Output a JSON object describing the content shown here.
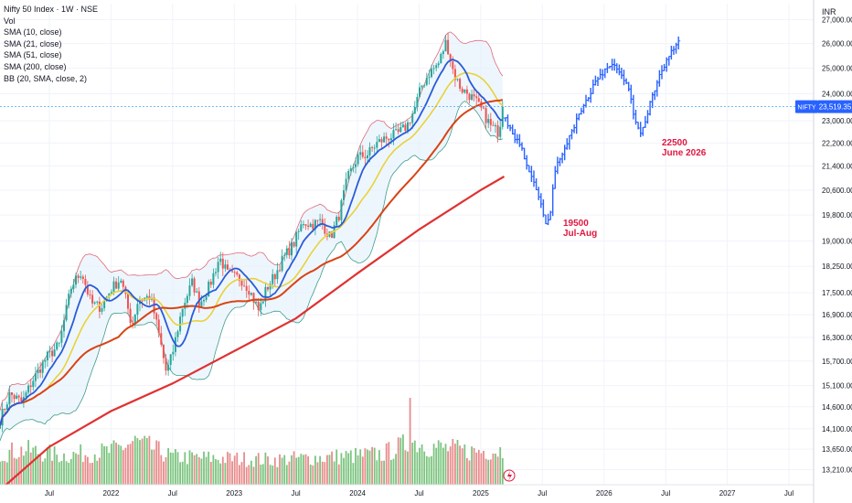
{
  "legend": {
    "title": "Nifty 50 Index · 1W · NSE",
    "vol": "Vol",
    "sma10": "SMA (10, close)",
    "sma21": "SMA (21, close)",
    "sma51": "SMA (51, close)",
    "sma200": "SMA (200, close)",
    "bb": "BB (20, SMA, close, 2)"
  },
  "axis": {
    "currency": "INR",
    "symbol_badge": "NIFTY",
    "last_price_label": "23,519.35",
    "last_price": 23519.35
  },
  "annotations": [
    {
      "lines": [
        "19500",
        "Jul-Aug"
      ],
      "color": "#e0173f"
    },
    {
      "lines": [
        "22500",
        "June 2026"
      ],
      "color": "#e0173f"
    }
  ],
  "chart_data": {
    "type": "line",
    "title": "Nifty 50 Index · 1W · NSE",
    "y_scale": "log",
    "ylim": [
      12900,
      27700
    ],
    "y_ticks": [
      13210,
      13650,
      14100,
      14600,
      15100,
      15700,
      16300,
      16900,
      17500,
      18250,
      19000,
      19800,
      20600,
      21400,
      22200,
      23000,
      24000,
      25000,
      26000,
      27000
    ],
    "y_tick_labels": [
      "13,210.00",
      "13,650.00",
      "14,100.00",
      "14,600.00",
      "15,100.00",
      "15,700.00",
      "16,300.00",
      "16,900.00",
      "17,500.00",
      "18,250.00",
      "19,000.00",
      "19,800.00",
      "20,600.00",
      "21,400.00",
      "22,200.00",
      "23,000.00",
      "24,000.00",
      "25,000.00",
      "26,000.00",
      "27,000.00"
    ],
    "x_ticks": [
      {
        "label": "Jul",
        "t": 2021.5
      },
      {
        "label": "2022",
        "t": 2022.0
      },
      {
        "label": "Jul",
        "t": 2022.5
      },
      {
        "label": "2023",
        "t": 2023.0
      },
      {
        "label": "Jul",
        "t": 2023.5
      },
      {
        "label": "2024",
        "t": 2024.0
      },
      {
        "label": "Jul",
        "t": 2024.5
      },
      {
        "label": "2025",
        "t": 2025.0
      },
      {
        "label": "Jul",
        "t": 2025.5
      },
      {
        "label": "2026",
        "t": 2026.0
      },
      {
        "label": "Jul",
        "t": 2026.5
      },
      {
        "label": "2027",
        "t": 2027.0
      },
      {
        "label": "Jul",
        "t": 2027.5
      }
    ],
    "xlim": [
      2021.1,
      2027.7
    ],
    "price_keypoints": [
      [
        2021.1,
        14300
      ],
      [
        2021.18,
        14900
      ],
      [
        2021.28,
        14700
      ],
      [
        2021.36,
        15200
      ],
      [
        2021.48,
        15800
      ],
      [
        2021.58,
        16100
      ],
      [
        2021.68,
        17700
      ],
      [
        2021.76,
        18100
      ],
      [
        2021.84,
        17200
      ],
      [
        2021.92,
        17100
      ],
      [
        2022.0,
        17600
      ],
      [
        2022.08,
        17900
      ],
      [
        2022.17,
        16600
      ],
      [
        2022.22,
        17300
      ],
      [
        2022.32,
        17400
      ],
      [
        2022.4,
        16200
      ],
      [
        2022.45,
        15400
      ],
      [
        2022.5,
        15900
      ],
      [
        2022.58,
        17100
      ],
      [
        2022.66,
        17800
      ],
      [
        2022.72,
        17200
      ],
      [
        2022.8,
        17700
      ],
      [
        2022.88,
        18500
      ],
      [
        2022.95,
        18000
      ],
      [
        2023.05,
        17900
      ],
      [
        2023.12,
        17600
      ],
      [
        2023.2,
        17000
      ],
      [
        2023.26,
        17600
      ],
      [
        2023.33,
        18000
      ],
      [
        2023.4,
        18500
      ],
      [
        2023.48,
        18900
      ],
      [
        2023.56,
        19600
      ],
      [
        2023.62,
        19500
      ],
      [
        2023.7,
        19600
      ],
      [
        2023.78,
        19100
      ],
      [
        2023.85,
        19800
      ],
      [
        2023.92,
        21000
      ],
      [
        2024.0,
        21700
      ],
      [
        2024.08,
        21800
      ],
      [
        2024.16,
        22200
      ],
      [
        2024.24,
        22400
      ],
      [
        2024.32,
        22500
      ],
      [
        2024.4,
        22800
      ],
      [
        2024.46,
        23400
      ],
      [
        2024.52,
        24300
      ],
      [
        2024.58,
        24800
      ],
      [
        2024.66,
        25200
      ],
      [
        2024.72,
        26100
      ],
      [
        2024.78,
        24800
      ],
      [
        2024.84,
        24200
      ],
      [
        2024.9,
        24000
      ],
      [
        2024.96,
        23700
      ],
      [
        2025.02,
        23300
      ],
      [
        2025.08,
        22800
      ],
      [
        2025.14,
        22600
      ],
      [
        2025.19,
        23519.35
      ]
    ],
    "volume_keypoints": [
      [
        2021.1,
        0.45
      ],
      [
        2021.3,
        0.5
      ],
      [
        2021.6,
        0.42
      ],
      [
        2022.0,
        0.48
      ],
      [
        2022.2,
        0.62
      ],
      [
        2022.5,
        0.4
      ],
      [
        2022.9,
        0.38
      ],
      [
        2023.3,
        0.36
      ],
      [
        2023.8,
        0.4
      ],
      [
        2024.2,
        0.44
      ],
      [
        2024.45,
        0.62
      ],
      [
        2024.6,
        0.55
      ],
      [
        2024.9,
        0.48
      ],
      [
        2025.19,
        0.5
      ]
    ],
    "volume_spike": {
      "t": 2024.42,
      "value": 1.0
    },
    "sma200_keypoints": [
      [
        2021.15,
        12900
      ],
      [
        2021.5,
        13700
      ],
      [
        2022.0,
        14500
      ],
      [
        2022.5,
        15150
      ],
      [
        2023.0,
        15950
      ],
      [
        2023.5,
        16800
      ],
      [
        2024.0,
        18050
      ],
      [
        2024.5,
        19350
      ],
      [
        2025.0,
        20600
      ],
      [
        2025.19,
        21050
      ]
    ],
    "forecast_keypoints": [
      [
        2025.2,
        23100
      ],
      [
        2025.28,
        22400
      ],
      [
        2025.36,
        21700
      ],
      [
        2025.42,
        20900
      ],
      [
        2025.48,
        20300
      ],
      [
        2025.53,
        19400
      ],
      [
        2025.56,
        19800
      ],
      [
        2025.6,
        21200
      ],
      [
        2025.68,
        22100
      ],
      [
        2025.76,
        22800
      ],
      [
        2025.84,
        23600
      ],
      [
        2025.92,
        24400
      ],
      [
        2026.0,
        24900
      ],
      [
        2026.06,
        25200
      ],
      [
        2026.12,
        24800
      ],
      [
        2026.18,
        24500
      ],
      [
        2026.24,
        23300
      ],
      [
        2026.3,
        22500
      ],
      [
        2026.34,
        23100
      ],
      [
        2026.38,
        23700
      ],
      [
        2026.44,
        24600
      ],
      [
        2026.5,
        25300
      ],
      [
        2026.56,
        25700
      ],
      [
        2026.62,
        26100
      ]
    ],
    "series": [
      {
        "name": "SMA (10, close)",
        "color": "#2a5bd7"
      },
      {
        "name": "SMA (21, close)",
        "color": "#e8d23a"
      },
      {
        "name": "SMA (51, close)",
        "color": "#d84315"
      },
      {
        "name": "SMA (200, close)",
        "color": "#e03131"
      },
      {
        "name": "BB (20, SMA, close, 2)",
        "color": "#d93b4a"
      }
    ],
    "colors": {
      "up": "#26a69a",
      "down": "#ef5350",
      "forecast": "#2962ff",
      "volume_up": "#7cc47f",
      "volume_down": "#e88c8c"
    }
  }
}
